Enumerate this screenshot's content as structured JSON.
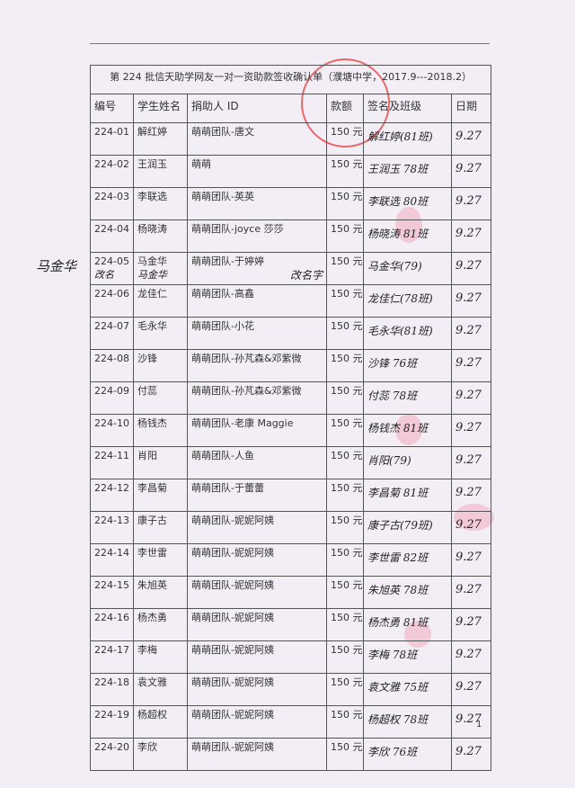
{
  "title": "第 224 批信天助学网友一对一资助款签收确认单（濮塘中学，2017.9---2018.2）",
  "headers": [
    "编号",
    "学生姓名",
    "捐助人 ID",
    "款额",
    "签名及班级",
    "日期"
  ],
  "rows": [
    {
      "id": "224-01",
      "name": "解红婷",
      "donor": "萌萌团队-唐文",
      "amount": "150 元",
      "signature": "解红婷(81班)",
      "date": "9.27"
    },
    {
      "id": "224-02",
      "name": "王润玉",
      "donor": "萌萌",
      "amount": "150 元",
      "signature": "王润玉 78班",
      "date": "9.27"
    },
    {
      "id": "224-03",
      "name": "李联选",
      "donor": "萌萌团队-英英",
      "amount": "150 元",
      "signature": "李联选 80班",
      "date": "9.27"
    },
    {
      "id": "224-04",
      "name": "杨晓涛",
      "donor": "萌萌团队-joyce 莎莎",
      "amount": "150 元",
      "signature": "杨晓涛 81班",
      "date": "9.27"
    },
    {
      "id": "224-05",
      "name": "马金华",
      "donor": "萌萌团队-于婷婷",
      "amount": "150 元",
      "signature": "马金华(79)",
      "date": "9.27"
    },
    {
      "id": "224-06",
      "name": "龙佳仁",
      "donor": "萌萌团队-高鑫",
      "amount": "150 元",
      "signature": "龙佳仁(78班)",
      "date": "9.27"
    },
    {
      "id": "224-07",
      "name": "毛永华",
      "donor": "萌萌团队-小花",
      "amount": "150 元",
      "signature": "毛永华(81班)",
      "date": "9.27"
    },
    {
      "id": "224-08",
      "name": "沙锋",
      "donor": "萌萌团队-孙芃森&邓紫微",
      "amount": "150 元",
      "signature": "沙锋 76班",
      "date": "9.27"
    },
    {
      "id": "224-09",
      "name": "付蕊",
      "donor": "萌萌团队-孙芃森&邓紫微",
      "amount": "150 元",
      "signature": "付蕊 78班",
      "date": "9.27"
    },
    {
      "id": "224-10",
      "name": "杨钱杰",
      "donor": "萌萌团队-老康 Maggie",
      "amount": "150 元",
      "signature": "杨钱杰 81班",
      "date": "9.27"
    },
    {
      "id": "224-11",
      "name": "肖阳",
      "donor": "萌萌团队-人鱼",
      "amount": "150 元",
      "signature": "肖阳(79)",
      "date": "9.27"
    },
    {
      "id": "224-12",
      "name": "李昌菊",
      "donor": "萌萌团队-于蕾蕾",
      "amount": "150 元",
      "signature": "李昌菊 81班",
      "date": "9.27"
    },
    {
      "id": "224-13",
      "name": "康子古",
      "donor": "萌萌团队-妮妮阿姨",
      "amount": "150 元",
      "signature": "康子古(79班)",
      "date": "9.27"
    },
    {
      "id": "224-14",
      "name": "李世雷",
      "donor": "萌萌团队-妮妮阿姨",
      "amount": "150 元",
      "signature": "李世雷 82班",
      "date": "9.27"
    },
    {
      "id": "224-15",
      "name": "朱旭英",
      "donor": "萌萌团队-妮妮阿姨",
      "amount": "150 元",
      "signature": "朱旭英 78班",
      "date": "9.27"
    },
    {
      "id": "224-16",
      "name": "杨杰勇",
      "donor": "萌萌团队-妮妮阿姨",
      "amount": "150 元",
      "signature": "杨杰勇 81班",
      "date": "9.27"
    },
    {
      "id": "224-17",
      "name": "李梅",
      "donor": "萌萌团队-妮妮阿姨",
      "amount": "150 元",
      "signature": "李梅 78班",
      "date": "9.27"
    },
    {
      "id": "224-18",
      "name": "袁文雅",
      "donor": "萌萌团队-妮妮阿姨",
      "amount": "150 元",
      "signature": "袁文雅 75班",
      "date": "9.27"
    },
    {
      "id": "224-19",
      "name": "杨超权",
      "donor": "萌萌团队-妮妮阿姨",
      "amount": "150 元",
      "signature": "杨超权 78班",
      "date": "9.27"
    },
    {
      "id": "224-20",
      "name": "李欣",
      "donor": "萌萌团队-妮妮阿姨",
      "amount": "150 元",
      "signature": "李欣 76班",
      "date": "9.27"
    }
  ],
  "notes": {
    "margin_name": "马金华",
    "margin_gaiming": "改名",
    "corrected_name": "马金华",
    "gaimingzi": "改名字"
  },
  "page_number": "1"
}
